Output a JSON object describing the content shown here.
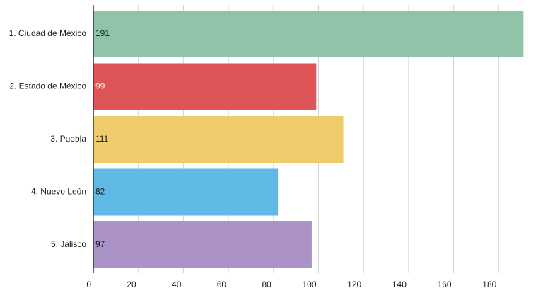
{
  "chart_data": {
    "type": "bar",
    "orientation": "horizontal",
    "title": "",
    "xlabel": "",
    "ylabel": "",
    "categories": [
      "1. Ciudad de México",
      "2. Estado de México",
      "3. Puebla",
      "4. Nuevo León",
      "5. Jalisco"
    ],
    "values": [
      191,
      99,
      111,
      82,
      97
    ],
    "value_labels": [
      "191",
      "99",
      "111",
      "82",
      "97"
    ],
    "colors": [
      "#8fc4a8",
      "#de5457",
      "#efcc6b",
      "#61b9e5",
      "#ab93c8"
    ],
    "value_label_colors": [
      "#1a1a1a",
      "#ffffff",
      "#1a1a1a",
      "#1a1a1a",
      "#1a1a1a"
    ],
    "xlim": [
      0,
      191
    ],
    "ticks": [
      0,
      20,
      40,
      60,
      80,
      100,
      120,
      140,
      160,
      180
    ],
    "tick_labels": [
      "0",
      "20",
      "40",
      "60",
      "80",
      "100",
      "120",
      "140",
      "160",
      "180"
    ],
    "grid": "vertical",
    "legend": "none"
  }
}
